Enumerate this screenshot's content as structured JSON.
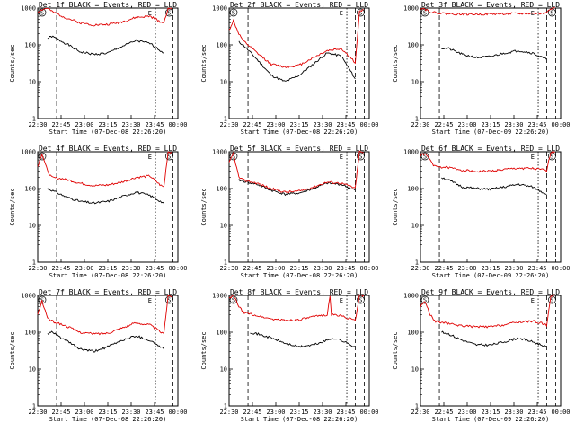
{
  "colors": {
    "events": "#000000",
    "lld": "#e00000",
    "frame": "#000000",
    "background": "#ffffff"
  },
  "chart_data": [
    {
      "type": "line",
      "title": "Det 1f BLACK = Events, RED = LLD",
      "xlabel": "Start Time (07-Dec-08 22:26:20)",
      "ylabel": "Counts/sec",
      "x_ticks": [
        "22:30",
        "22:45",
        "23:00",
        "23:15",
        "23:30",
        "23:45",
        "00:00"
      ],
      "y_ticks": [
        "1",
        "10",
        "100",
        "1000"
      ],
      "yscale": "log",
      "ylim": [
        1,
        1000
      ],
      "markers": {
        "start": "S",
        "end": "E"
      },
      "series": [
        {
          "name": "BLACK = Events",
          "color": "black",
          "x": [
            0.07,
            0.1,
            0.2,
            0.3,
            0.4,
            0.5,
            0.6,
            0.7,
            0.8,
            0.9
          ],
          "y": [
            150,
            170,
            110,
            65,
            55,
            60,
            90,
            130,
            110,
            60
          ]
        },
        {
          "name": "RED = LLD",
          "color": "red",
          "x": [
            0.0,
            0.03,
            0.07,
            0.1,
            0.2,
            0.3,
            0.4,
            0.5,
            0.6,
            0.7,
            0.8,
            0.88,
            0.9,
            0.93,
            0.96
          ],
          "y": [
            800,
            900,
            1000,
            800,
            550,
            400,
            350,
            360,
            420,
            550,
            600,
            420,
            400,
            1000,
            900
          ]
        }
      ]
    },
    {
      "type": "line",
      "title": "Det 2f BLACK = Events, RED = LLD",
      "xlabel": "Start Time (07-Dec-08 22:26:20)",
      "ylabel": "Counts/sec",
      "x_ticks": [
        "22:30",
        "22:45",
        "23:00",
        "23:15",
        "23:30",
        "23:45",
        "00:00"
      ],
      "y_ticks": [
        "1",
        "10",
        "100",
        "1000"
      ],
      "yscale": "log",
      "ylim": [
        1,
        1000
      ],
      "markers": {
        "start": "S",
        "end": "E"
      },
      "series": [
        {
          "name": "BLACK = Events",
          "color": "black",
          "x": [
            0.07,
            0.1,
            0.2,
            0.3,
            0.4,
            0.5,
            0.6,
            0.7,
            0.8,
            0.9
          ],
          "y": [
            120,
            100,
            40,
            15,
            10,
            15,
            30,
            60,
            50,
            12
          ]
        },
        {
          "name": "RED = LLD",
          "color": "red",
          "x": [
            0.0,
            0.03,
            0.07,
            0.1,
            0.2,
            0.3,
            0.4,
            0.5,
            0.6,
            0.7,
            0.8,
            0.88,
            0.9,
            0.93,
            0.96
          ],
          "y": [
            250,
            450,
            200,
            130,
            60,
            30,
            25,
            28,
            45,
            70,
            80,
            40,
            30,
            800,
            900
          ]
        }
      ]
    },
    {
      "type": "line",
      "title": "Det 3f BLACK = Events, RED = LLD",
      "xlabel": "Start Time (07-Dec-09 22:26:20)",
      "ylabel": "Counts/sec",
      "x_ticks": [
        "22:30",
        "22:45",
        "23:00",
        "23:15",
        "23:30",
        "23:45",
        "00:00"
      ],
      "y_ticks": [
        "1",
        "10",
        "100",
        "1000"
      ],
      "yscale": "log",
      "ylim": [
        1,
        1000
      ],
      "markers": {
        "start": "S",
        "end": "E"
      },
      "series": [
        {
          "name": "BLACK = Events",
          "color": "black",
          "x": [
            0.15,
            0.2,
            0.3,
            0.4,
            0.5,
            0.6,
            0.7,
            0.8,
            0.9
          ],
          "y": [
            80,
            80,
            55,
            45,
            48,
            60,
            70,
            60,
            40
          ]
        },
        {
          "name": "RED = LLD",
          "color": "red",
          "x": [
            0.0,
            0.03,
            0.07,
            0.1,
            0.2,
            0.3,
            0.4,
            0.5,
            0.6,
            0.7,
            0.8,
            0.88,
            0.93,
            0.96
          ],
          "y": [
            1000,
            950,
            800,
            750,
            700,
            680,
            680,
            690,
            700,
            700,
            720,
            700,
            1000,
            1000
          ]
        }
      ]
    },
    {
      "type": "line",
      "title": "Det 4f BLACK = Events, RED = LLD",
      "xlabel": "Start Time (07-Dec-08 22:26:20)",
      "ylabel": "Counts/sec",
      "x_ticks": [
        "22:30",
        "22:45",
        "23:00",
        "23:15",
        "23:30",
        "23:45",
        "00:00"
      ],
      "y_ticks": [
        "1",
        "10",
        "100",
        "1000"
      ],
      "yscale": "log",
      "ylim": [
        1,
        1000
      ],
      "markers": {
        "start": "S",
        "end": "E"
      },
      "series": [
        {
          "name": "BLACK = Events",
          "color": "black",
          "x": [
            0.07,
            0.1,
            0.2,
            0.3,
            0.4,
            0.5,
            0.6,
            0.7,
            0.8,
            0.9
          ],
          "y": [
            100,
            90,
            60,
            45,
            40,
            45,
            60,
            80,
            65,
            40
          ]
        },
        {
          "name": "RED = LLD",
          "color": "red",
          "x": [
            0.0,
            0.03,
            0.07,
            0.1,
            0.2,
            0.3,
            0.4,
            0.5,
            0.6,
            0.7,
            0.8,
            0.88,
            0.9,
            0.93,
            0.96
          ],
          "y": [
            400,
            900,
            300,
            200,
            180,
            140,
            120,
            125,
            150,
            200,
            220,
            120,
            110,
            1000,
            950
          ]
        }
      ]
    },
    {
      "type": "line",
      "title": "Det 5f BLACK = Events, RED = LLD",
      "xlabel": "Start Time (07-Dec-08 22:26:20)",
      "ylabel": "Counts/sec",
      "x_ticks": [
        "22:30",
        "22:45",
        "23:00",
        "23:15",
        "23:30",
        "23:45",
        "00:00"
      ],
      "y_ticks": [
        "1",
        "10",
        "100",
        "1000"
      ],
      "yscale": "log",
      "ylim": [
        1,
        1000
      ],
      "markers": {
        "start": "S",
        "end": "E"
      },
      "series": [
        {
          "name": "BLACK = Events",
          "color": "black",
          "x": [
            0.07,
            0.1,
            0.2,
            0.3,
            0.4,
            0.5,
            0.6,
            0.7,
            0.8,
            0.9
          ],
          "y": [
            170,
            160,
            130,
            90,
            70,
            75,
            100,
            140,
            130,
            90
          ]
        },
        {
          "name": "RED = LLD",
          "color": "red",
          "x": [
            0.0,
            0.03,
            0.07,
            0.1,
            0.2,
            0.3,
            0.4,
            0.5,
            0.6,
            0.7,
            0.8,
            0.88,
            0.9,
            0.93,
            0.96
          ],
          "y": [
            500,
            900,
            200,
            170,
            140,
            100,
            80,
            85,
            110,
            150,
            140,
            110,
            100,
            1000,
            950
          ]
        }
      ]
    },
    {
      "type": "line",
      "title": "Det 6f BLACK = Events, RED = LLD",
      "xlabel": "Start Time (07-Dec-09 22:26:20)",
      "ylabel": "Counts/sec",
      "x_ticks": [
        "22:30",
        "22:45",
        "23:00",
        "23:15",
        "23:30",
        "23:45",
        "00:00"
      ],
      "y_ticks": [
        "1",
        "10",
        "100",
        "1000"
      ],
      "yscale": "log",
      "ylim": [
        1,
        1000
      ],
      "markers": {
        "start": "S",
        "end": "E"
      },
      "series": [
        {
          "name": "BLACK = Events",
          "color": "black",
          "x": [
            0.15,
            0.2,
            0.3,
            0.4,
            0.5,
            0.6,
            0.7,
            0.8,
            0.9
          ],
          "y": [
            200,
            170,
            110,
            100,
            95,
            110,
            130,
            110,
            70
          ]
        },
        {
          "name": "RED = LLD",
          "color": "red",
          "x": [
            0.0,
            0.03,
            0.07,
            0.1,
            0.2,
            0.3,
            0.4,
            0.5,
            0.6,
            0.7,
            0.8,
            0.88,
            0.9,
            0.93,
            0.96
          ],
          "y": [
            800,
            900,
            600,
            400,
            370,
            320,
            290,
            300,
            330,
            360,
            350,
            320,
            300,
            1000,
            1000
          ]
        }
      ]
    },
    {
      "type": "line",
      "title": "Det 7f BLACK = Events, RED = LLD",
      "xlabel": "Start Time (07-Dec-08 22:26:20)",
      "ylabel": "Counts/sec",
      "x_ticks": [
        "22:30",
        "22:45",
        "23:00",
        "23:15",
        "23:30",
        "23:45",
        "00:00"
      ],
      "y_ticks": [
        "1",
        "10",
        "100",
        "1000"
      ],
      "yscale": "log",
      "ylim": [
        1,
        1000
      ],
      "markers": {
        "start": "S",
        "end": "E"
      },
      "series": [
        {
          "name": "BLACK = Events",
          "color": "black",
          "x": [
            0.07,
            0.1,
            0.2,
            0.3,
            0.4,
            0.5,
            0.6,
            0.7,
            0.8,
            0.9
          ],
          "y": [
            90,
            100,
            60,
            35,
            30,
            40,
            60,
            80,
            60,
            35
          ]
        },
        {
          "name": "RED = LLD",
          "color": "red",
          "x": [
            0.0,
            0.03,
            0.07,
            0.1,
            0.2,
            0.3,
            0.4,
            0.5,
            0.6,
            0.7,
            0.8,
            0.88,
            0.9,
            0.93,
            0.96
          ],
          "y": [
            300,
            700,
            250,
            200,
            150,
            100,
            90,
            95,
            130,
            180,
            160,
            100,
            90,
            1000,
            950
          ]
        }
      ]
    },
    {
      "type": "line",
      "title": "Det 8f BLACK = Events, RED = LLD",
      "xlabel": "Start Time (07-Dec-08 22:26:20)",
      "ylabel": "Counts/sec",
      "x_ticks": [
        "22:30",
        "22:45",
        "23:00",
        "23:15",
        "23:30",
        "23:45",
        "00:00"
      ],
      "y_ticks": [
        "1",
        "10",
        "100",
        "1000"
      ],
      "yscale": "log",
      "ylim": [
        1,
        1000
      ],
      "markers": {
        "start": "S",
        "end": "E"
      },
      "series": [
        {
          "name": "BLACK = Events",
          "color": "black",
          "x": [
            0.15,
            0.2,
            0.3,
            0.4,
            0.5,
            0.6,
            0.7,
            0.74,
            0.8,
            0.9
          ],
          "y": [
            100,
            90,
            70,
            50,
            40,
            45,
            60,
            70,
            60,
            40
          ]
        },
        {
          "name": "RED = LLD",
          "color": "red",
          "x": [
            0.0,
            0.03,
            0.07,
            0.1,
            0.2,
            0.3,
            0.4,
            0.5,
            0.6,
            0.7,
            0.72,
            0.73,
            0.8,
            0.88,
            0.9,
            0.93,
            0.96
          ],
          "y": [
            800,
            1000,
            500,
            350,
            280,
            230,
            210,
            220,
            260,
            300,
            1000,
            300,
            280,
            220,
            200,
            1000,
            1000
          ]
        }
      ]
    },
    {
      "type": "line",
      "title": "Det 9f BLACK = Events, RED = LLD",
      "xlabel": "Start Time (07-Dec-09 22:26:20)",
      "ylabel": "Counts/sec",
      "x_ticks": [
        "22:30",
        "22:45",
        "23:00",
        "23:15",
        "23:30",
        "23:45",
        "00:00"
      ],
      "y_ticks": [
        "1",
        "10",
        "100",
        "1000"
      ],
      "yscale": "log",
      "ylim": [
        1,
        1000
      ],
      "markers": {
        "start": "S",
        "end": "E"
      },
      "series": [
        {
          "name": "BLACK = Events",
          "color": "black",
          "x": [
            0.15,
            0.2,
            0.3,
            0.4,
            0.5,
            0.6,
            0.7,
            0.8,
            0.9
          ],
          "y": [
            100,
            90,
            60,
            45,
            45,
            55,
            70,
            55,
            40
          ]
        },
        {
          "name": "RED = LLD",
          "color": "red",
          "x": [
            0.0,
            0.03,
            0.07,
            0.1,
            0.2,
            0.3,
            0.4,
            0.5,
            0.6,
            0.7,
            0.8,
            0.88,
            0.9,
            0.93,
            0.96
          ],
          "y": [
            500,
            700,
            300,
            200,
            170,
            150,
            140,
            140,
            160,
            190,
            200,
            170,
            150,
            1000,
            1000
          ]
        }
      ]
    }
  ]
}
